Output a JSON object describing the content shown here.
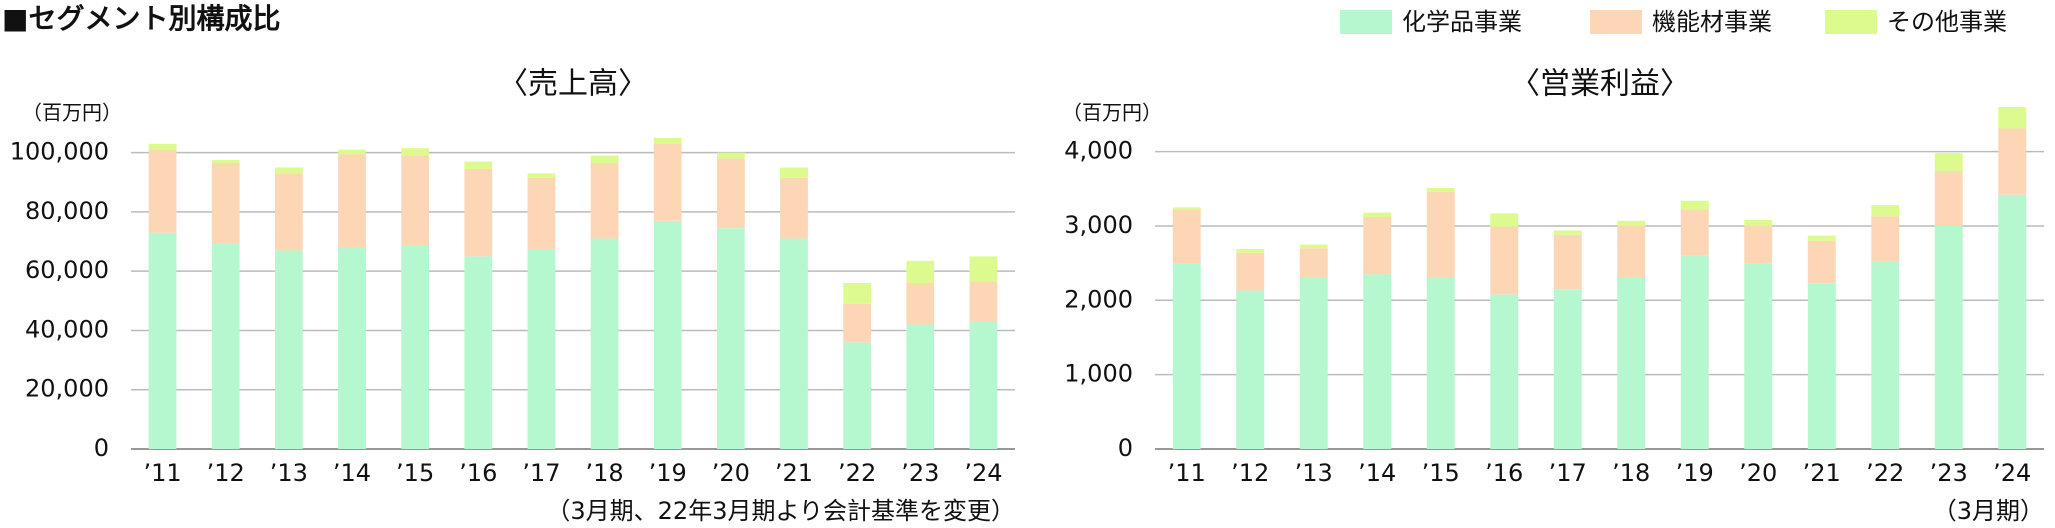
{
  "title": "■セグメント別構成比",
  "chart_data": [
    {
      "type": "bar",
      "stacked": true,
      "title": "〈売上高〉",
      "unit": "（百万円）",
      "note": "（3月期、22年3月期より会計基準を変更）",
      "categories": [
        "’11",
        "’12",
        "’13",
        "’14",
        "’15",
        "’16",
        "’17",
        "’18",
        "’19",
        "’20",
        "’21",
        "’22",
        "’23",
        "’24"
      ],
      "series": [
        {
          "name": "化学品事業",
          "color": "#b5f8cf",
          "values": [
            73000,
            69500,
            67000,
            68000,
            68500,
            65000,
            67500,
            71000,
            77000,
            74500,
            71000,
            36000,
            42000,
            43000
          ]
        },
        {
          "name": "機能材事業",
          "color": "#fdd6b5",
          "values": [
            28000,
            27000,
            26000,
            31500,
            30500,
            29500,
            24000,
            25500,
            26000,
            23500,
            20500,
            13000,
            14000,
            13500
          ]
        },
        {
          "name": "その他事業",
          "color": "#ddfa8e",
          "values": [
            2000,
            1000,
            2000,
            1500,
            2500,
            2500,
            1500,
            2500,
            2000,
            2000,
            3500,
            7000,
            7500,
            8500
          ]
        }
      ],
      "ylim": [
        0,
        110000
      ],
      "yticks": [
        0,
        {
          "value": 20000,
          "label": "20,000"
        },
        {
          "value": 40000,
          "label": "40,000"
        },
        {
          "value": 60000,
          "label": "60,000"
        },
        {
          "value": 80000,
          "label": "80,000"
        },
        {
          "value": 100000,
          "label": "100,000"
        }
      ],
      "grid": true
    },
    {
      "type": "bar",
      "stacked": true,
      "title": "〈営業利益〉",
      "unit": "（百万円）",
      "note": "（3月期）",
      "categories": [
        "’11",
        "’12",
        "’13",
        "’14",
        "’15",
        "’16",
        "’17",
        "’18",
        "’19",
        "’20",
        "’21",
        "’22",
        "’23",
        "’24"
      ],
      "series": [
        {
          "name": "化学品事業",
          "color": "#b5f8cf",
          "values": [
            2500,
            2130,
            2300,
            2350,
            2300,
            2080,
            2150,
            2300,
            2600,
            2500,
            2230,
            2520,
            3000,
            3420
          ]
        },
        {
          "name": "機能材事業",
          "color": "#fdd6b5",
          "values": [
            720,
            510,
            400,
            770,
            1160,
            910,
            730,
            700,
            620,
            500,
            570,
            610,
            740,
            890
          ]
        },
        {
          "name": "その他事業",
          "color": "#ddfa8e",
          "values": [
            30,
            50,
            50,
            60,
            50,
            180,
            60,
            70,
            120,
            80,
            70,
            150,
            240,
            290
          ]
        }
      ],
      "ylim": [
        0,
        4600
      ],
      "yticks": [
        0,
        {
          "value": 1000,
          "label": "1,000"
        },
        {
          "value": 2000,
          "label": "2,000"
        },
        {
          "value": 3000,
          "label": "3,000"
        },
        {
          "value": 4000,
          "label": "4,000"
        }
      ],
      "grid": true
    }
  ]
}
